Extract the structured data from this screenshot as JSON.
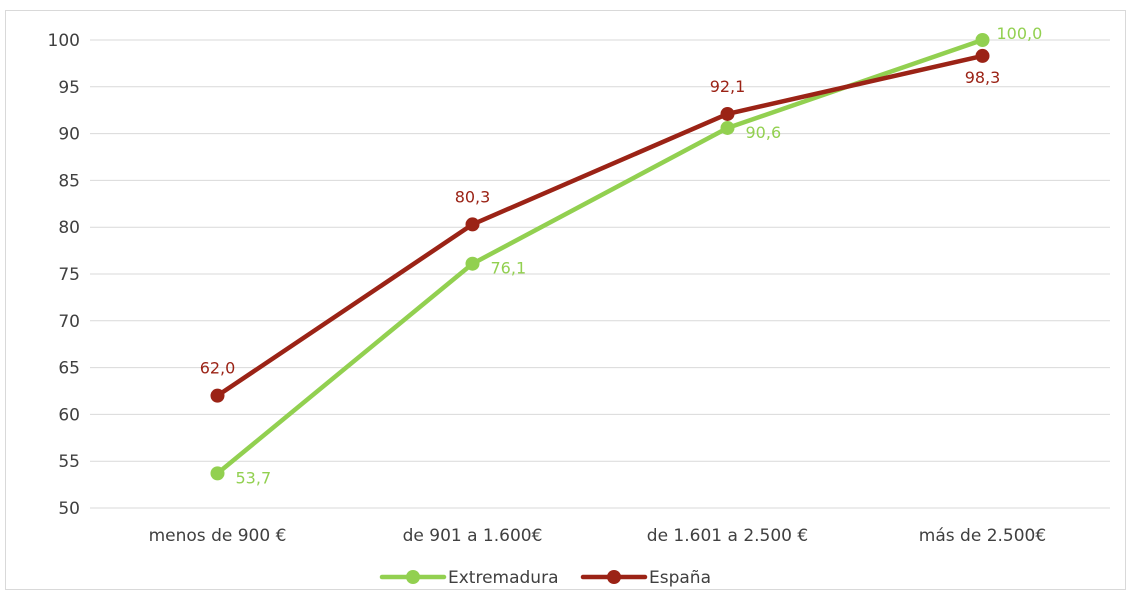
{
  "chart_data": {
    "type": "line",
    "title": "",
    "xlabel": "",
    "ylabel": "",
    "categories": [
      "menos de 900 €",
      "de 901 a 1.600€",
      "de 1.601 a 2.500 €",
      "más de 2.500€"
    ],
    "ylim": [
      50,
      100
    ],
    "yticks": [
      "50",
      "55",
      "60",
      "65",
      "70",
      "75",
      "80",
      "85",
      "90",
      "95",
      "100"
    ],
    "grid": true,
    "legend_position": "bottom",
    "series": [
      {
        "name": "Extremadura",
        "color": "#92d050",
        "values": [
          53.7,
          76.1,
          90.6,
          100.0
        ],
        "labels": [
          "53,7",
          "76,1",
          "90,6",
          "100,0"
        ]
      },
      {
        "name": "España",
        "color": "#9b2316",
        "values": [
          62.0,
          80.3,
          92.1,
          98.3
        ],
        "labels": [
          "62,0",
          "80,3",
          "92,1",
          "98,3"
        ]
      }
    ]
  }
}
